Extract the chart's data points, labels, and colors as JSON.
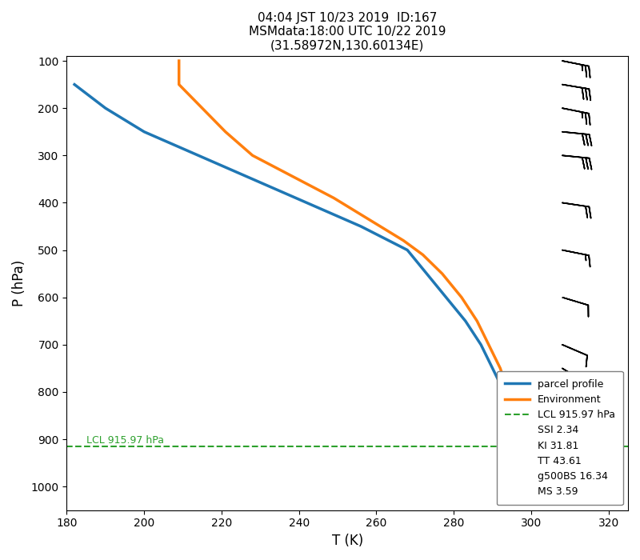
{
  "title": "04:04 JST 10/23 2019  ID:167\nMSMdata:18:00 UTC 10/22 2019\n(31.58972N,130.60134E)",
  "xlabel": "T (K)",
  "ylabel": "P (hPa)",
  "xlim": [
    180,
    325
  ],
  "ylim_bottom": 1050,
  "ylim_top": 90,
  "lcl_pressure": 915.97,
  "lcl_label": "LCL 915.97 hPa",
  "parcel_T": [
    182,
    186,
    190,
    195,
    200,
    207,
    214,
    221,
    228,
    235,
    242,
    249,
    256,
    262,
    268,
    273,
    278,
    283,
    287,
    290,
    293,
    295,
    296
  ],
  "parcel_P": [
    150,
    175,
    200,
    225,
    250,
    275,
    300,
    325,
    350,
    375,
    400,
    425,
    450,
    475,
    500,
    550,
    600,
    650,
    700,
    750,
    800,
    850,
    950
  ],
  "env_T": [
    209,
    209,
    215,
    221,
    228,
    235,
    242,
    249,
    255,
    261,
    267,
    272,
    277,
    282,
    286,
    289,
    292,
    294,
    296,
    297,
    298
  ],
  "env_P": [
    100,
    150,
    200,
    250,
    300,
    330,
    360,
    390,
    420,
    450,
    480,
    510,
    550,
    600,
    650,
    700,
    750,
    800,
    850,
    900,
    925
  ],
  "parcel_color": "#1f77b4",
  "env_color": "#ff7f0e",
  "lcl_color": "#2ca02c",
  "parcel_lw": 2.5,
  "env_lw": 2.5,
  "wind_pressures": [
    100,
    150,
    200,
    250,
    300,
    400,
    500,
    600,
    700,
    750,
    800,
    925
  ],
  "wind_u": [
    -25,
    -30,
    -25,
    -30,
    -30,
    -20,
    -15,
    -10,
    -7,
    -5,
    -5,
    -10
  ],
  "wind_v": [
    5,
    5,
    5,
    3,
    3,
    3,
    3,
    3,
    3,
    3,
    3,
    5
  ],
  "barb_x": 308,
  "legend_texts": [
    "parcel profile",
    "Environment",
    "LCL 915.97 hPa",
    "SSI 2.34",
    "KI 31.81",
    "TT 43.61",
    "g500BS 16.34",
    "MS 3.59"
  ],
  "xticks": [
    180,
    200,
    220,
    240,
    260,
    280,
    300,
    320
  ],
  "yticks": [
    100,
    200,
    300,
    400,
    500,
    600,
    700,
    800,
    900,
    1000
  ],
  "figsize": [
    8.0,
    7.0
  ],
  "dpi": 100
}
